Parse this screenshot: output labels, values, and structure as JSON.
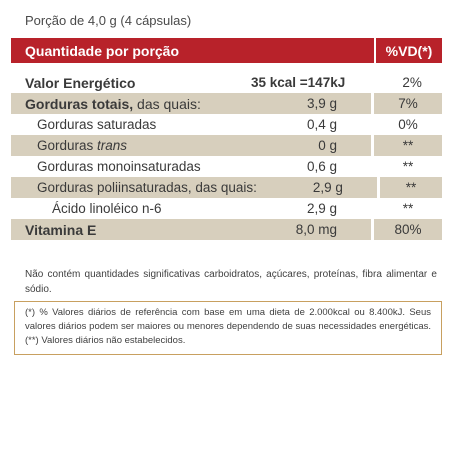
{
  "serving_size": "Porção de 4,0 g (4 cápsulas)",
  "table": {
    "header_left": "Quantidade por porção",
    "header_right": "%VD(*)",
    "rows": [
      {
        "name": "Valor Energético",
        "suffix": "",
        "amount": "35 kcal =147kJ",
        "dv": "2%"
      },
      {
        "name": "Gorduras totais,",
        "suffix": " das quais:",
        "amount": "3,9 g",
        "dv": "7%"
      },
      {
        "name": "Gorduras saturadas",
        "suffix": "",
        "amount": "0,4 g",
        "dv": "0%"
      },
      {
        "name": "Gorduras ",
        "suffix": "trans",
        "amount": "0 g",
        "dv": "**"
      },
      {
        "name": "Gorduras monoinsaturadas",
        "suffix": "",
        "amount": "0,6 g",
        "dv": "**"
      },
      {
        "name": "Gorduras poliinsaturadas, das quais:",
        "suffix": "",
        "amount": "2,9 g",
        "dv": "**"
      },
      {
        "name": "Ácido linoléico n-6",
        "suffix": "",
        "amount": "2,9 g",
        "dv": "**"
      },
      {
        "name": "Vitamina E",
        "suffix": "",
        "amount": "8,0 mg",
        "dv": "80%"
      }
    ]
  },
  "note": "Não contém quantidades significativas carboidratos, açúcares, proteínas, fibra alimentar e sódio.",
  "footnote": "(*) % Valores diários de referência com base em uma dieta de 2.000kcal ou 8.400kJ. Seus valores diários podem ser maiores ou menores dependendo de suas necessidades energéticas. (**) Valores diários não estabelecidos.",
  "colors": {
    "header_bg": "#b8222a",
    "shade_bg": "#d7cfbd",
    "box_border": "#c8a060"
  }
}
